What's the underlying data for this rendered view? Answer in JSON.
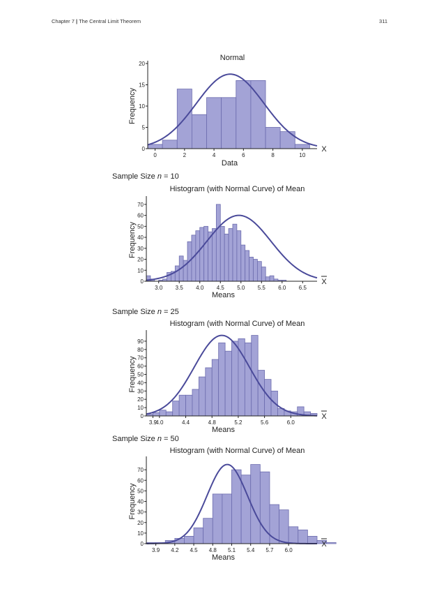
{
  "header": {
    "chapter": "Chapter 7",
    "separator": "|",
    "chapter_title": "The Central Limit Theorem",
    "page_number": "311"
  },
  "sample_labels": [
    {
      "prefix": "Sample Size",
      "var": "n",
      "eq": "= 10"
    },
    {
      "prefix": "Sample Size",
      "var": "n",
      "eq": "= 25"
    },
    {
      "prefix": "Sample Size",
      "var": "n",
      "eq": "= 50"
    }
  ],
  "colors": {
    "bar_fill": "#a3a3d6",
    "bar_stroke": "#6c6cae",
    "curve": "#4a4a9a",
    "axis": "#222222"
  },
  "chart_data": [
    {
      "type": "bar",
      "title": "Normal",
      "xlabel": "Data",
      "ylabel": "Frequency",
      "axis_end_label": "X",
      "xlim": [
        -0.5,
        11
      ],
      "ylim": [
        0,
        20
      ],
      "xticks": [
        0,
        2,
        4,
        6,
        8,
        10
      ],
      "xtick_labels": [
        "0",
        "2",
        "4",
        "6",
        "8",
        "10"
      ],
      "yticks": [
        0,
        5,
        10,
        15,
        20
      ],
      "bins": [
        {
          "x0": -0.5,
          "x1": 0.5,
          "y": 1
        },
        {
          "x0": 0.5,
          "x1": 1.5,
          "y": 2
        },
        {
          "x0": 1.5,
          "x1": 2.5,
          "y": 14
        },
        {
          "x0": 2.5,
          "x1": 3.5,
          "y": 8
        },
        {
          "x0": 3.5,
          "x1": 4.5,
          "y": 12
        },
        {
          "x0": 4.5,
          "x1": 5.5,
          "y": 12
        },
        {
          "x0": 5.5,
          "x1": 6.5,
          "y": 16
        },
        {
          "x0": 6.5,
          "x1": 7.5,
          "y": 16
        },
        {
          "x0": 7.5,
          "x1": 8.5,
          "y": 5
        },
        {
          "x0": 8.5,
          "x1": 9.5,
          "y": 4
        },
        {
          "x0": 9.5,
          "x1": 10.5,
          "y": 1
        }
      ],
      "curve": {
        "mean": 5.1,
        "sd": 2.3,
        "peak": 17.5
      }
    },
    {
      "type": "bar",
      "title": "Histogram (with Normal Curve) of Mean",
      "xlabel": "Means",
      "ylabel": "Frequency",
      "axis_end_label": "X",
      "xlim": [
        2.7,
        6.85
      ],
      "ylim": [
        0,
        75
      ],
      "xticks": [
        3.0,
        3.5,
        4.0,
        4.5,
        5.0,
        5.5,
        6.0,
        6.5
      ],
      "xtick_labels": [
        "3.0",
        "3.5",
        "4.0",
        "4.5",
        "5.0",
        "5.5",
        "6.0",
        "6.5"
      ],
      "yticks": [
        0,
        10,
        20,
        30,
        40,
        50,
        60,
        70
      ],
      "bin_start": 2.7,
      "bin_width": 0.1,
      "values": [
        5,
        2,
        0,
        1,
        2,
        8,
        9,
        14,
        23,
        19,
        36,
        42,
        46,
        49,
        50,
        45,
        48,
        70,
        50,
        43,
        48,
        52,
        46,
        33,
        28,
        22,
        20,
        18,
        13,
        4,
        5,
        2,
        1,
        1
      ],
      "curve": {
        "mean": 4.95,
        "sd": 0.78,
        "peak": 60
      }
    },
    {
      "type": "bar",
      "title": "Histogram (with Normal Curve) of Mean",
      "xlabel": "Means",
      "ylabel": "Frequency",
      "axis_end_label": "X",
      "xlim": [
        3.8,
        6.4
      ],
      "ylim": [
        0,
        100
      ],
      "xticks": [
        3.9,
        4.0,
        4.4,
        4.8,
        5.2,
        5.6,
        6.0
      ],
      "xtick_labels": [
        "3.9",
        "4.0",
        "4.4",
        "4.8",
        "5.2",
        "5.6",
        "6.0"
      ],
      "yticks": [
        0,
        10,
        20,
        30,
        40,
        50,
        60,
        70,
        80,
        90
      ],
      "bin_start": 3.8,
      "bin_width": 0.1,
      "values": [
        2,
        4,
        7,
        5,
        18,
        25,
        25,
        32,
        47,
        58,
        68,
        88,
        78,
        90,
        93,
        88,
        97,
        55,
        44,
        30,
        9,
        6,
        5,
        11,
        5,
        3
      ],
      "curve": {
        "mean": 4.95,
        "sd": 0.42,
        "peak": 97
      }
    },
    {
      "type": "bar",
      "title": "Histogram (with Normal Curve) of Mean",
      "xlabel": "Means",
      "ylabel": "Frequency",
      "axis_end_label": "X",
      "xlim": [
        3.75,
        6.45
      ],
      "ylim": [
        0,
        80
      ],
      "xticks": [
        3.9,
        4.2,
        4.5,
        4.8,
        5.1,
        5.4,
        5.7,
        6.0
      ],
      "xtick_labels": [
        "3.9",
        "4.2",
        "4.5",
        "4.8",
        "5.1",
        "5.4",
        "5.7",
        "6.0"
      ],
      "yticks": [
        0,
        10,
        20,
        30,
        40,
        50,
        60,
        70
      ],
      "bin_start": 3.75,
      "bin_width": 0.15,
      "values": [
        1,
        1,
        3,
        5,
        7,
        15,
        24,
        47,
        47,
        70,
        65,
        75,
        68,
        37,
        32,
        16,
        13,
        7,
        3,
        1
      ],
      "curve": {
        "mean": 5.03,
        "sd": 0.32,
        "peak": 75
      }
    }
  ]
}
